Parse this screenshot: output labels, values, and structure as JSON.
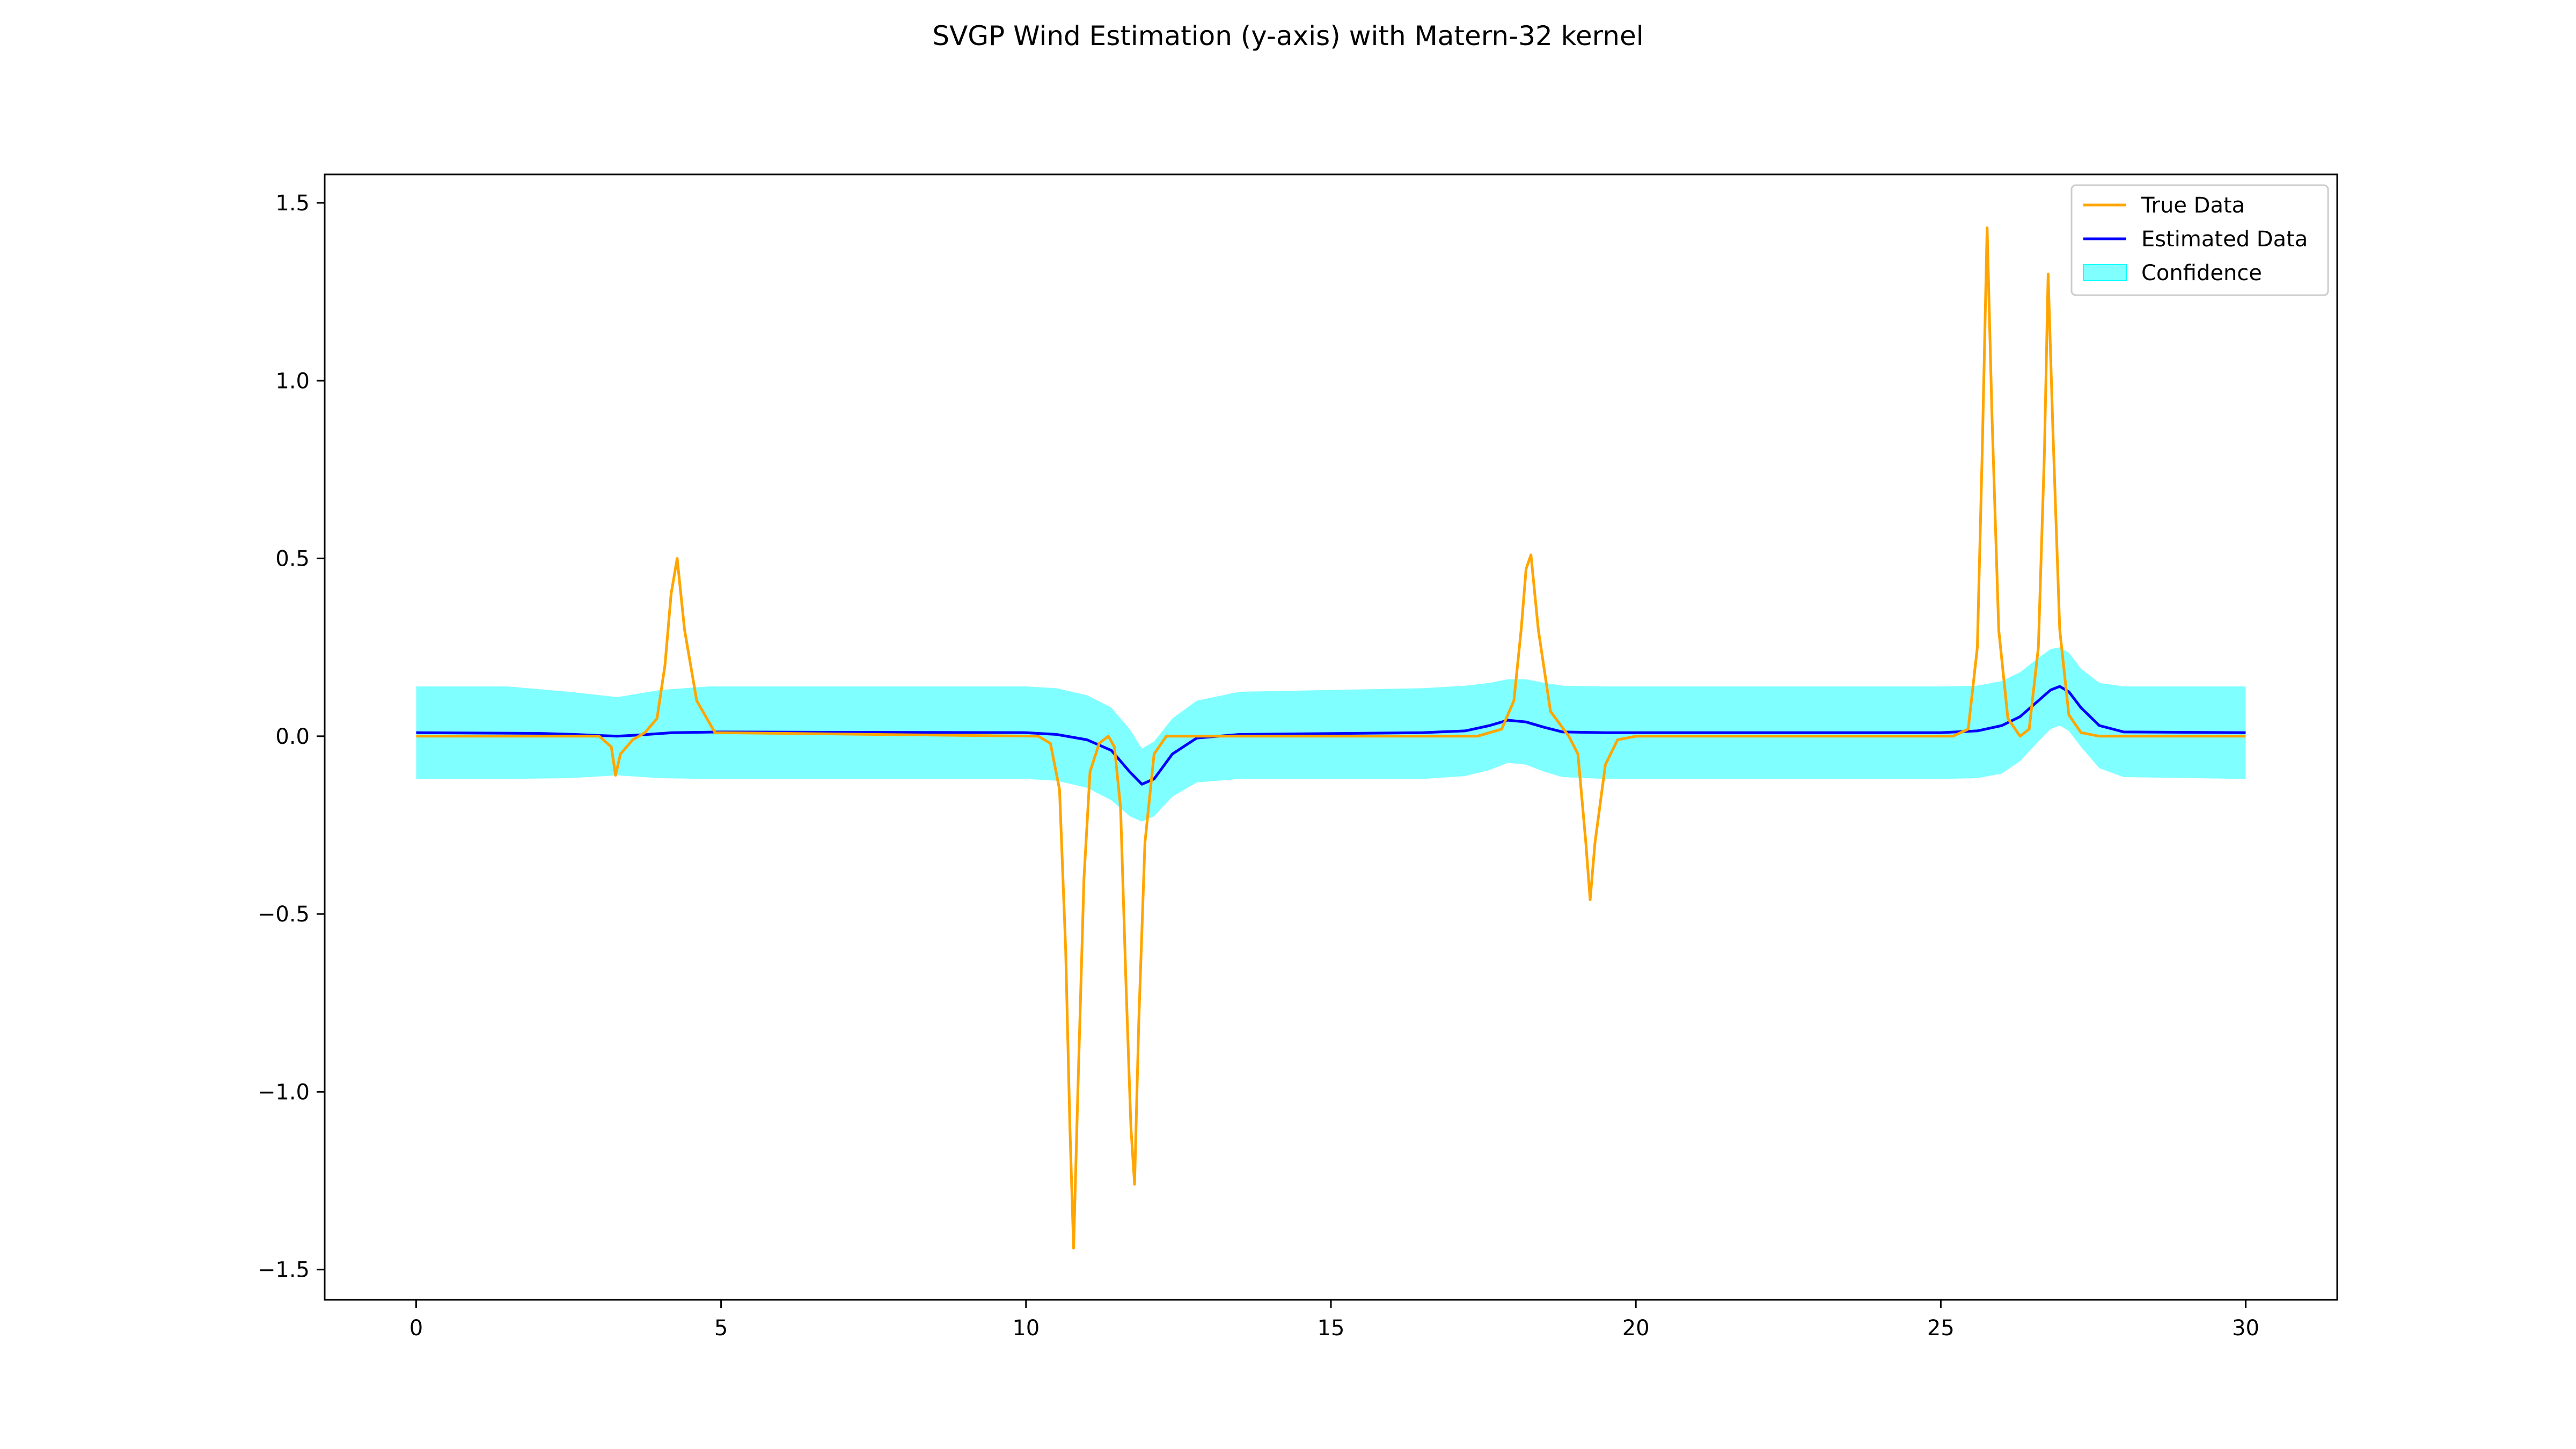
{
  "chart_data": {
    "type": "line",
    "title": "SVGP Wind Estimation (y-axis) with Matern-32 kernel",
    "xlabel": "",
    "ylabel": "",
    "xlim": [
      -1.5,
      31.5
    ],
    "ylim": [
      -1.585,
      1.58
    ],
    "x_ticks": [
      0,
      5,
      10,
      15,
      20,
      25,
      30
    ],
    "y_ticks": [
      -1.5,
      -1.0,
      -0.5,
      0.0,
      0.5,
      1.0,
      1.5
    ],
    "x_tick_labels": [
      "0",
      "5",
      "10",
      "15",
      "20",
      "25",
      "30"
    ],
    "y_tick_labels": [
      "−1.5",
      "−1.0",
      "−0.5",
      "0.0",
      "0.5",
      "1.0",
      "1.5"
    ],
    "grid": false,
    "legend_position": "top-right",
    "series": [
      {
        "name": "True Data",
        "kind": "line",
        "color": "#ffa500",
        "x": [
          0,
          3.0,
          3.2,
          3.27,
          3.35,
          3.55,
          3.75,
          3.95,
          4.08,
          4.18,
          4.28,
          4.4,
          4.6,
          4.9,
          10.2,
          10.4,
          10.55,
          10.65,
          10.72,
          10.78,
          10.85,
          10.95,
          11.05,
          11.2,
          11.35,
          11.45,
          11.55,
          11.64,
          11.72,
          11.78,
          11.85,
          11.95,
          12.1,
          12.3,
          12.6,
          17.4,
          17.8,
          18.0,
          18.12,
          18.2,
          18.28,
          18.4,
          18.6,
          18.9,
          19.05,
          19.18,
          19.25,
          19.33,
          19.5,
          19.7,
          20.0,
          25.2,
          25.45,
          25.6,
          25.68,
          25.76,
          25.84,
          25.95,
          26.1,
          26.3,
          26.45,
          26.6,
          26.7,
          26.76,
          26.84,
          26.95,
          27.1,
          27.3,
          27.6,
          30
        ],
        "y": [
          0.0,
          0.0,
          -0.03,
          -0.11,
          -0.05,
          -0.01,
          0.01,
          0.05,
          0.2,
          0.4,
          0.5,
          0.3,
          0.1,
          0.01,
          0.0,
          -0.02,
          -0.15,
          -0.6,
          -1.1,
          -1.44,
          -1.0,
          -0.4,
          -0.1,
          -0.02,
          0.0,
          -0.03,
          -0.2,
          -0.7,
          -1.1,
          -1.26,
          -0.8,
          -0.3,
          -0.05,
          0.0,
          0.0,
          0.0,
          0.02,
          0.1,
          0.3,
          0.47,
          0.51,
          0.3,
          0.07,
          0.0,
          -0.05,
          -0.3,
          -0.46,
          -0.3,
          -0.08,
          -0.01,
          0.0,
          0.0,
          0.02,
          0.25,
          0.8,
          1.43,
          0.9,
          0.3,
          0.05,
          0.0,
          0.02,
          0.25,
          0.8,
          1.3,
          0.85,
          0.3,
          0.06,
          0.01,
          0.0,
          0.0
        ]
      },
      {
        "name": "Estimated Data",
        "kind": "line",
        "color": "#0000ff",
        "x": [
          0,
          2.0,
          2.6,
          3.0,
          3.3,
          3.7,
          4.2,
          5.0,
          10.0,
          10.5,
          11.0,
          11.4,
          11.7,
          11.9,
          12.1,
          12.4,
          12.8,
          13.5,
          16.5,
          17.2,
          17.6,
          17.9,
          18.2,
          18.5,
          18.8,
          19.5,
          25.0,
          25.6,
          26.0,
          26.3,
          26.6,
          26.8,
          26.95,
          27.1,
          27.3,
          27.6,
          28.0,
          30
        ],
        "y": [
          0.01,
          0.008,
          0.005,
          0.002,
          0.0,
          0.004,
          0.01,
          0.012,
          0.01,
          0.005,
          -0.01,
          -0.04,
          -0.1,
          -0.135,
          -0.12,
          -0.05,
          -0.005,
          0.005,
          0.01,
          0.015,
          0.03,
          0.045,
          0.04,
          0.025,
          0.012,
          0.01,
          0.01,
          0.015,
          0.03,
          0.055,
          0.1,
          0.13,
          0.14,
          0.125,
          0.08,
          0.03,
          0.012,
          0.01
        ]
      },
      {
        "name": "Confidence",
        "kind": "band",
        "color": "#00ffff",
        "x": [
          0,
          1.5,
          2.5,
          3.3,
          4.0,
          4.8,
          10.0,
          10.5,
          11.0,
          11.4,
          11.7,
          11.9,
          12.1,
          12.4,
          12.8,
          13.5,
          16.5,
          17.2,
          17.6,
          17.9,
          18.2,
          18.5,
          18.8,
          19.5,
          25.0,
          25.6,
          26.0,
          26.3,
          26.6,
          26.8,
          26.95,
          27.1,
          27.3,
          27.6,
          28.0,
          30
        ],
        "lower": [
          -0.12,
          -0.12,
          -0.118,
          -0.11,
          -0.118,
          -0.12,
          -0.12,
          -0.125,
          -0.145,
          -0.18,
          -0.225,
          -0.24,
          -0.225,
          -0.17,
          -0.13,
          -0.12,
          -0.12,
          -0.112,
          -0.095,
          -0.075,
          -0.08,
          -0.1,
          -0.115,
          -0.12,
          -0.12,
          -0.118,
          -0.105,
          -0.07,
          -0.015,
          0.02,
          0.03,
          0.015,
          -0.03,
          -0.09,
          -0.115,
          -0.12
        ],
        "upper": [
          0.14,
          0.14,
          0.125,
          0.11,
          0.13,
          0.14,
          0.14,
          0.135,
          0.115,
          0.08,
          0.02,
          -0.035,
          -0.015,
          0.05,
          0.1,
          0.125,
          0.135,
          0.142,
          0.15,
          0.16,
          0.16,
          0.15,
          0.142,
          0.14,
          0.14,
          0.142,
          0.155,
          0.18,
          0.22,
          0.245,
          0.25,
          0.235,
          0.19,
          0.15,
          0.14,
          0.14
        ]
      }
    ],
    "legend": {
      "entries": [
        "True Data",
        "Estimated Data",
        "Confidence"
      ]
    }
  }
}
